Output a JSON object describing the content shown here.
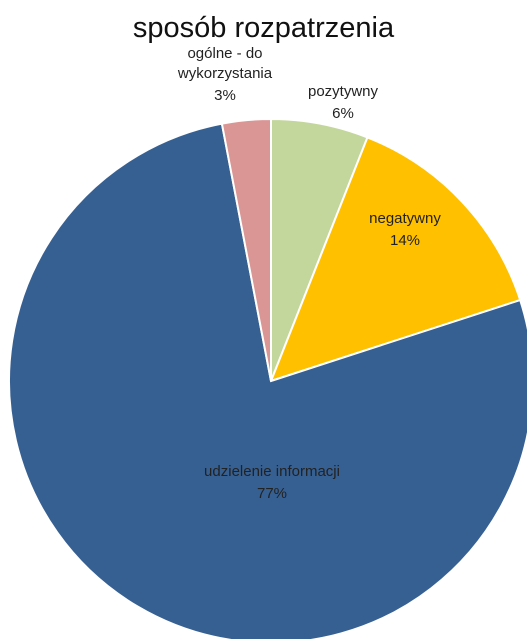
{
  "chart_data": {
    "type": "pie",
    "title": "sposób rozpatrzenia",
    "categories": [
      "pozytywny",
      "negatywny",
      "udzielenie informacji",
      "ogólne - do wykorzystania"
    ],
    "values": [
      6,
      14,
      77,
      3
    ],
    "value_labels": [
      "6%",
      "14%",
      "77%",
      "3%"
    ],
    "colors": [
      "#c3d69b",
      "#ffc000",
      "#376092",
      "#d99694"
    ]
  }
}
